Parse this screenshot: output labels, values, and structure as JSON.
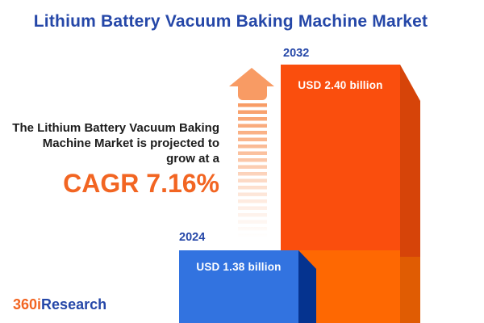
{
  "title": "Lithium Battery Vacuum Baking Machine Market",
  "subtitle": {
    "line1": "The Lithium Battery Vacuum Baking",
    "line2": "Machine Market is projected to",
    "line3": "grow at a",
    "cagr": "CAGR 7.16%"
  },
  "logo": {
    "part1": "360i",
    "part2": "Research"
  },
  "icons": {
    "growth_arrow": "up-arrow"
  },
  "colors": {
    "title_blue": "#2547A8",
    "accent_orange": "#F26522",
    "text_dark": "#1C1C1C",
    "bar_2024_front": "#3273E0",
    "bar_2024_side": "#05338F",
    "bar_2032_front_top": "#FA4E0D",
    "bar_2032_front_bottom": "#FE6802",
    "bar_2032_side_top": "#D64409",
    "bar_2032_side_bottom": "#E05C03",
    "arrow_salmon": "#F89B64"
  },
  "chart_data": {
    "type": "bar",
    "title": "Lithium Battery Vacuum Baking Machine Market",
    "categories": [
      "2024",
      "2032"
    ],
    "values": [
      1.38,
      2.4
    ],
    "unit": "USD billion",
    "data_labels": [
      "USD 1.38 billion",
      "USD 2.40 billion"
    ],
    "cagr_percent": 7.16,
    "annotation": "The Lithium Battery Vacuum Baking Machine Market is projected to grow at a CAGR 7.16%",
    "legend": "none",
    "grid": false,
    "axes_hidden": true,
    "bar_colors": [
      "#3273E0",
      "#FA4E0D"
    ]
  }
}
